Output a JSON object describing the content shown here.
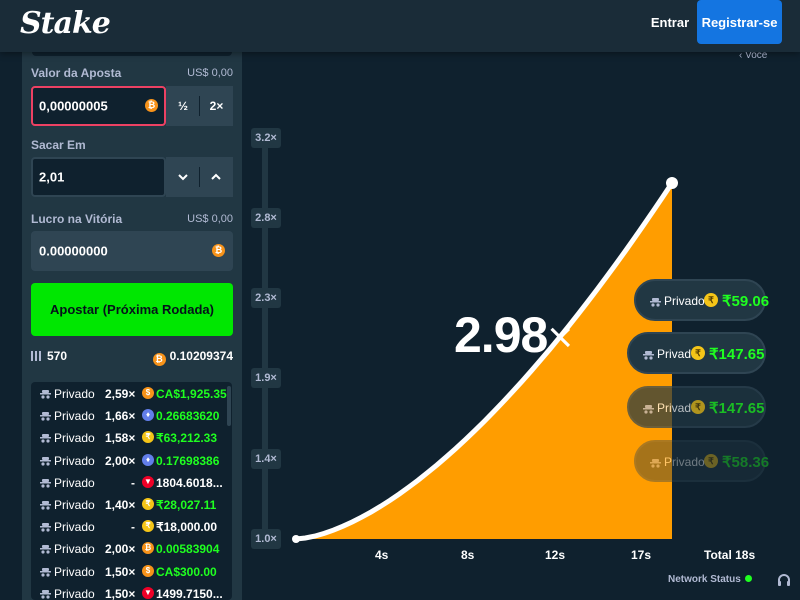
{
  "header": {
    "logo": "Stake",
    "login_label": "Entrar",
    "register_label": "Registrar-se"
  },
  "sidebar": {
    "bet_amount_label": "Valor da Aposta",
    "bet_amount_usd": "US$ 0,00",
    "bet_amount_value": "0,00000005",
    "half_label": "½",
    "double_label": "2×",
    "cashout_label": "Sacar Em",
    "cashout_value": "2,01",
    "profit_label": "Lucro na Vitória",
    "profit_usd": "US$ 0,00",
    "profit_value": "0.00000000",
    "bet_button_label": "Apostar (Próxima Rodada)",
    "player_count": "570",
    "total_bet": "0.10209374",
    "players": [
      {
        "name": "Privado",
        "mult": "2,59×",
        "currency": "CAD",
        "amount": "CA$1,925.35",
        "color": "#f7931a"
      },
      {
        "name": "Privado",
        "mult": "1,66×",
        "currency": "ETH",
        "amount": "0.26683620",
        "color": "#627eea"
      },
      {
        "name": "Privado",
        "mult": "1,58×",
        "currency": "INR",
        "amount": "₹63,212.33",
        "color": "#f5c518"
      },
      {
        "name": "Privado",
        "mult": "2,00×",
        "currency": "ETH",
        "amount": "0.17698386",
        "color": "#627eea"
      },
      {
        "name": "Privado",
        "mult": "-",
        "currency": "TRX",
        "amount": "1804.6018...",
        "color": "#ef0027"
      },
      {
        "name": "Privado",
        "mult": "1,40×",
        "currency": "INR",
        "amount": "₹28,027.11",
        "color": "#f5c518"
      },
      {
        "name": "Privado",
        "mult": "-",
        "currency": "INR",
        "amount": "₹18,000.00",
        "color": "#f5c518"
      },
      {
        "name": "Privado",
        "mult": "2,00×",
        "currency": "BTC",
        "amount": "0.00583904",
        "color": "#f7931a"
      },
      {
        "name": "Privado",
        "mult": "1,50×",
        "currency": "CAD",
        "amount": "CA$300.00",
        "color": "#f7931a"
      },
      {
        "name": "Privado",
        "mult": "1,50×",
        "currency": "TRX",
        "amount": "1499.7150...",
        "color": "#ef0027"
      }
    ]
  },
  "chart": {
    "you_label": "‹ Voce",
    "current_multiplier": "2.98",
    "multiplier_suffix": "×",
    "y_ticks": [
      "3.2×",
      "2.8×",
      "2.3×",
      "1.9×",
      "1.4×",
      "1.0×"
    ],
    "x_ticks": [
      "4s",
      "8s",
      "12s",
      "17s",
      "Total 18s"
    ],
    "curve_color": "#ff9d00",
    "line_color": "#ffffff"
  },
  "cashouts": [
    {
      "name": "Privado",
      "amount": "₹59.06",
      "opacity": 1.0
    },
    {
      "name": "Privado",
      "amount": "₹147.65",
      "opacity": 1.0
    },
    {
      "name": "Privado",
      "amount": "₹147.65",
      "opacity": 0.7
    },
    {
      "name": "Privado",
      "amount": "₹58.36",
      "opacity": 0.4
    }
  ],
  "footer": {
    "network_status_label": "Network Status"
  },
  "chart_data": {
    "type": "area",
    "x": [
      0,
      4,
      8,
      12,
      17,
      18
    ],
    "y": [
      1.0,
      1.18,
      1.45,
      1.85,
      2.6,
      2.98
    ],
    "xlabel": "",
    "ylabel": "",
    "ylim": [
      1.0,
      3.2
    ],
    "xlim": [
      0,
      18
    ],
    "current_value": 2.98
  }
}
